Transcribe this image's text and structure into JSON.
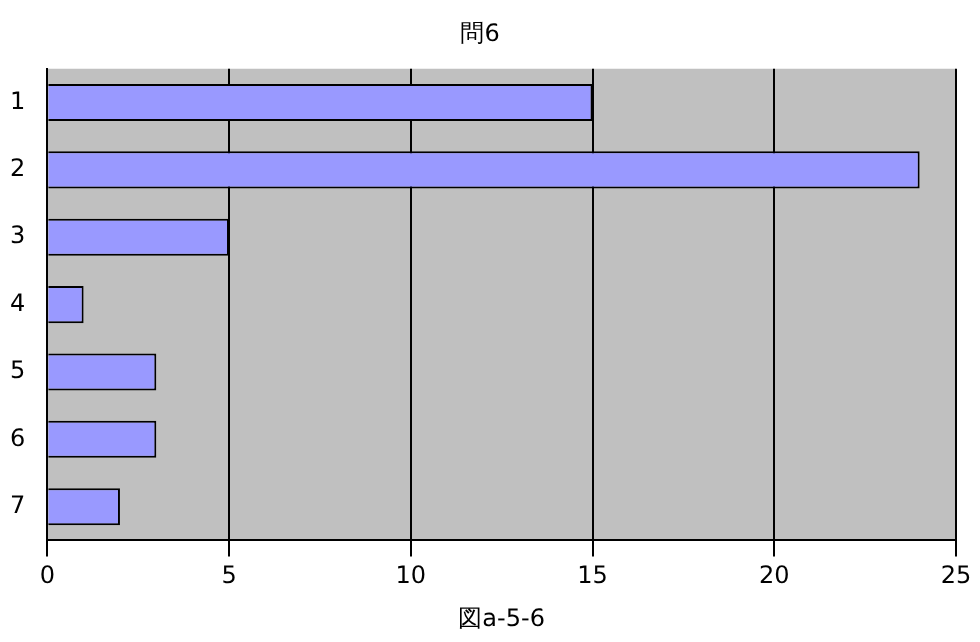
{
  "chart_data": {
    "type": "bar",
    "orientation": "horizontal",
    "title": "問6",
    "xlabel": "図a-5-6",
    "categories": [
      "1",
      "2",
      "3",
      "4",
      "5",
      "6",
      "7"
    ],
    "values": [
      15,
      24,
      5,
      1,
      3,
      3,
      2
    ],
    "color": "#9999ff",
    "xlim": [
      0,
      25
    ],
    "xticks": [
      0,
      5,
      10,
      15,
      20,
      25
    ],
    "grid": "x",
    "legend": false
  }
}
